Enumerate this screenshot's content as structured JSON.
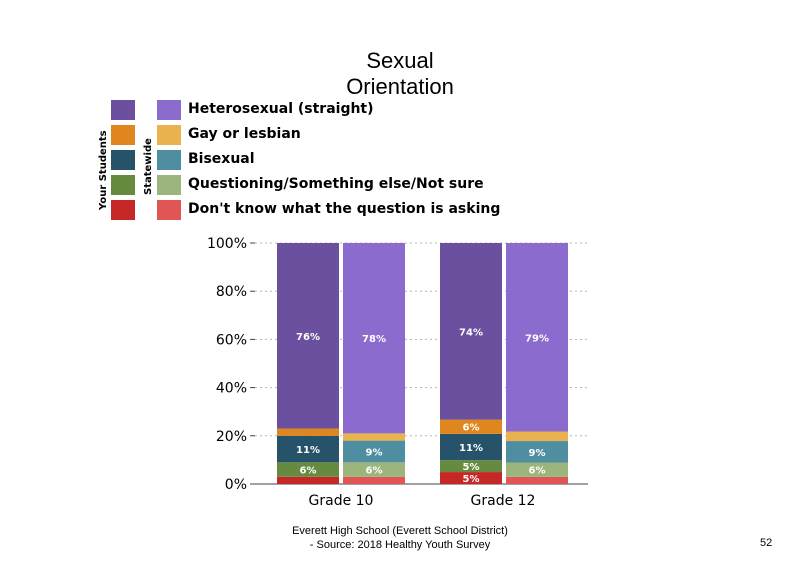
{
  "title_line1": "Sexual",
  "title_line2": "Orientation",
  "legend": {
    "group_labels": {
      "yours": "Your Students",
      "state": "Statewide"
    },
    "items": [
      {
        "label": "Heterosexual (straight)",
        "yours_color": "#6a509e",
        "state_color": "#8b6bce"
      },
      {
        "label": "Gay or lesbian",
        "yours_color": "#e0861f",
        "state_color": "#eab14f"
      },
      {
        "label": "Bisexual",
        "yours_color": "#27536a",
        "state_color": "#4f8ea1"
      },
      {
        "label": "Questioning/Something else/Not sure",
        "yours_color": "#668a3f",
        "state_color": "#9bb57c"
      },
      {
        "label": "Don't know what the question is asking",
        "yours_color": "#c62828",
        "state_color": "#e05555"
      }
    ]
  },
  "chart_data": {
    "type": "bar",
    "stacked": true,
    "categories": [
      "Grade 10",
      "Grade 12"
    ],
    "ylim": [
      0,
      100
    ],
    "yticks": [
      "0%",
      "20%",
      "40%",
      "60%",
      "80%",
      "100%"
    ],
    "grid": true,
    "bars": [
      {
        "category": "Grade 10",
        "group": "Your Students",
        "segments": [
          {
            "series": "Don't know what the question is asking",
            "value": 3,
            "label": ""
          },
          {
            "series": "Questioning/Something else/Not sure",
            "value": 6,
            "label": "6%"
          },
          {
            "series": "Bisexual",
            "value": 11,
            "label": "11%"
          },
          {
            "series": "Gay or lesbian",
            "value": 3,
            "label": ""
          },
          {
            "series": "Heterosexual (straight)",
            "value": 76,
            "label": "76%"
          }
        ]
      },
      {
        "category": "Grade 10",
        "group": "Statewide",
        "segments": [
          {
            "series": "Don't know what the question is asking",
            "value": 3,
            "label": ""
          },
          {
            "series": "Questioning/Something else/Not sure",
            "value": 6,
            "label": "6%"
          },
          {
            "series": "Bisexual",
            "value": 9,
            "label": "9%"
          },
          {
            "series": "Gay or lesbian",
            "value": 3,
            "label": ""
          },
          {
            "series": "Heterosexual (straight)",
            "value": 78,
            "label": "78%"
          }
        ]
      },
      {
        "category": "Grade 12",
        "group": "Your Students",
        "segments": [
          {
            "series": "Don't know what the question is asking",
            "value": 5,
            "label": "5%"
          },
          {
            "series": "Questioning/Something else/Not sure",
            "value": 5,
            "label": "5%"
          },
          {
            "series": "Bisexual",
            "value": 11,
            "label": "11%"
          },
          {
            "series": "Gay or lesbian",
            "value": 6,
            "label": "6%"
          },
          {
            "series": "Heterosexual (straight)",
            "value": 74,
            "label": "74%"
          }
        ]
      },
      {
        "category": "Grade 12",
        "group": "Statewide",
        "segments": [
          {
            "series": "Don't know what the question is asking",
            "value": 3,
            "label": ""
          },
          {
            "series": "Questioning/Something else/Not sure",
            "value": 6,
            "label": "6%"
          },
          {
            "series": "Bisexual",
            "value": 9,
            "label": "9%"
          },
          {
            "series": "Gay or lesbian",
            "value": 4,
            "label": ""
          },
          {
            "series": "Heterosexual (straight)",
            "value": 79,
            "label": "79%"
          }
        ]
      }
    ]
  },
  "footer_line1": "Everett High  School (Everett School District)",
  "footer_line2": "- Source: 2018 Healthy  Youth Survey",
  "page_number": "52"
}
